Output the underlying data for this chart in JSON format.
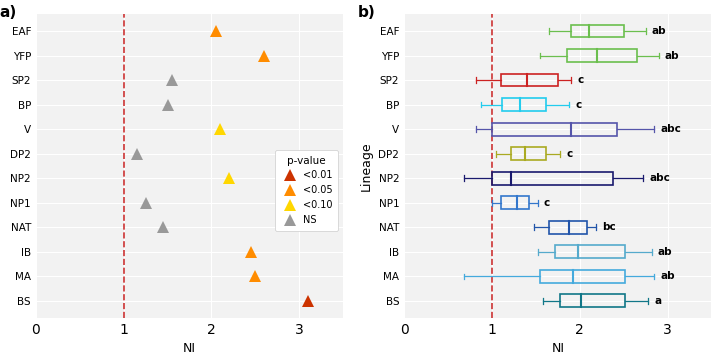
{
  "lineages": [
    "EAF",
    "YFP",
    "SP2",
    "BP",
    "V",
    "DP2",
    "NP2",
    "NP1",
    "NAT",
    "IB",
    "MA",
    "BS"
  ],
  "scatter_ni": [
    2.05,
    2.6,
    1.55,
    1.5,
    2.1,
    1.15,
    2.2,
    1.25,
    1.45,
    2.45,
    2.5,
    3.1
  ],
  "scatter_colors": [
    "#FF8C00",
    "#FF8C00",
    "#999999",
    "#999999",
    "#FFD700",
    "#999999",
    "#FFD700",
    "#999999",
    "#999999",
    "#FF8C00",
    "#FF8C00",
    "#CC3300"
  ],
  "box_colors": [
    "#6BBF4E",
    "#6BBF4E",
    "#CC2222",
    "#22CCEE",
    "#5555AA",
    "#AAAA22",
    "#1A1A6E",
    "#3377CC",
    "#2255AA",
    "#55AACC",
    "#44AADD",
    "#117788"
  ],
  "box_data": {
    "EAF": [
      1.65,
      1.9,
      2.1,
      2.5,
      2.75
    ],
    "YFP": [
      1.55,
      1.85,
      2.2,
      2.65,
      2.9
    ],
    "SP2": [
      0.82,
      1.1,
      1.4,
      1.75,
      1.9
    ],
    "BP": [
      0.88,
      1.12,
      1.32,
      1.62,
      1.88
    ],
    "V": [
      0.82,
      1.0,
      1.9,
      2.42,
      2.85
    ],
    "DP2": [
      1.05,
      1.22,
      1.38,
      1.62,
      1.78
    ],
    "NP2": [
      0.68,
      1.0,
      1.22,
      2.38,
      2.72
    ],
    "NP1": [
      1.0,
      1.1,
      1.28,
      1.42,
      1.52
    ],
    "NAT": [
      1.48,
      1.65,
      1.88,
      2.08,
      2.18
    ],
    "IB": [
      1.52,
      1.72,
      1.98,
      2.52,
      2.82
    ],
    "MA": [
      0.68,
      1.55,
      1.92,
      2.52,
      2.85
    ],
    "BS": [
      1.58,
      1.78,
      2.02,
      2.52,
      2.78
    ]
  },
  "box_labels": [
    "ab",
    "ab",
    "c",
    "c",
    "abc",
    "c",
    "abc",
    "c",
    "bc",
    "ab",
    "ab",
    "a"
  ],
  "vline_x": 1.0,
  "xlim_a": [
    0,
    3.5
  ],
  "xlim_b": [
    0,
    3.5
  ],
  "xticks": [
    0,
    1,
    2,
    3
  ],
  "xlabel": "NI",
  "panel_a_title": "a)",
  "panel_b_title": "b)",
  "ylabel_b": "Lineage",
  "legend_categories": [
    "<0.01",
    "<0.05",
    "<0.10",
    "NS"
  ],
  "legend_colors": [
    "#CC3300",
    "#FF8C00",
    "#FFD700",
    "#999999"
  ],
  "legend_title": "p-value",
  "bg_color": "#f2f2f2"
}
